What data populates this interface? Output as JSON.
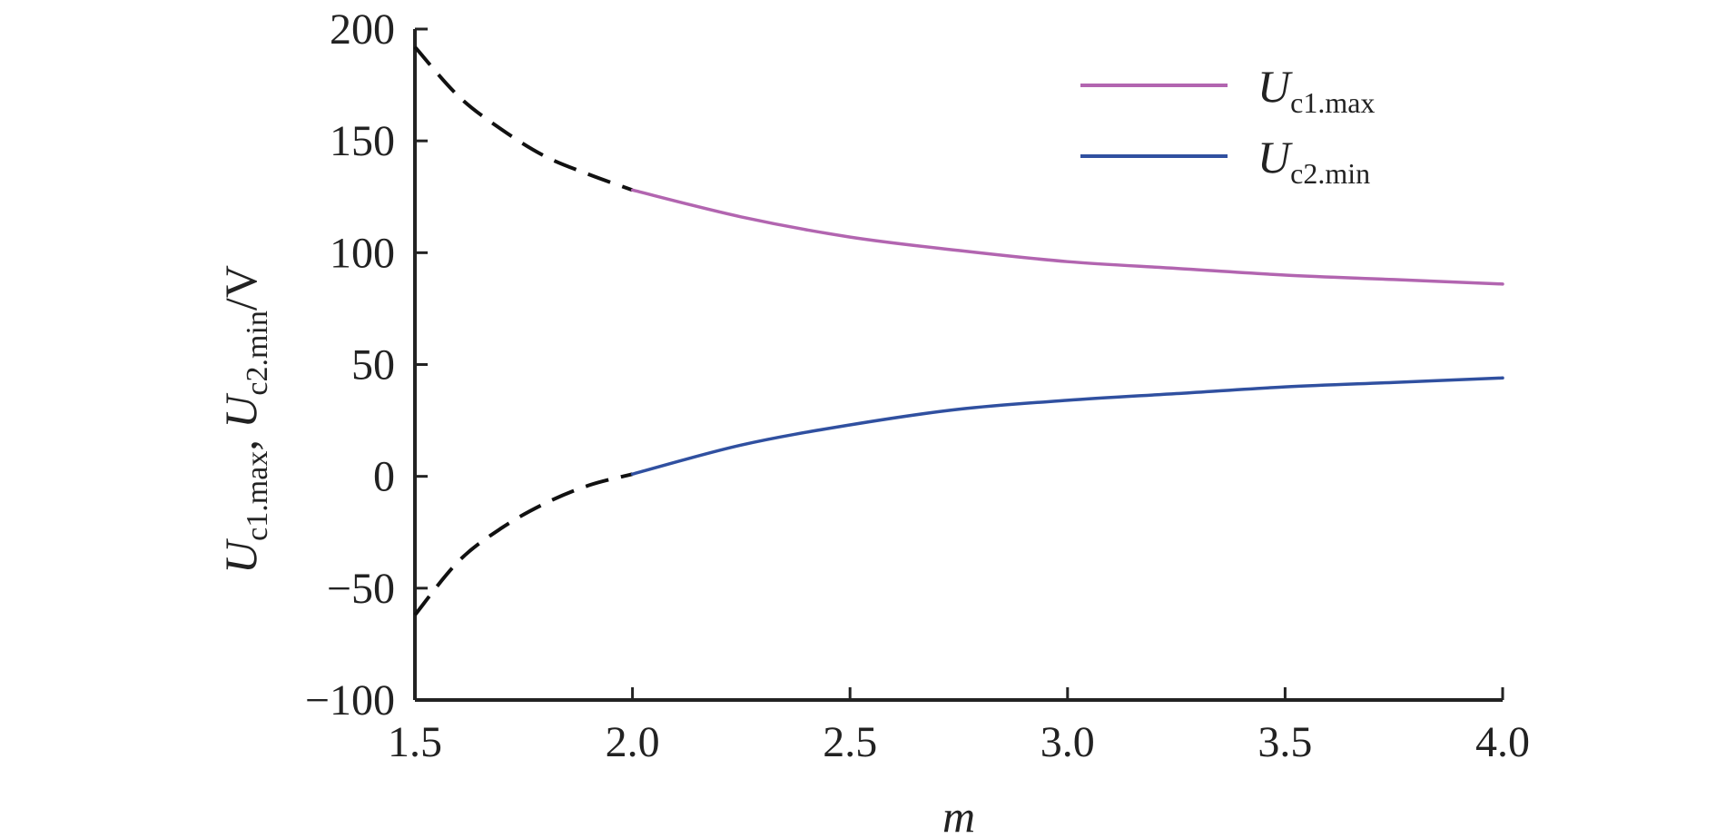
{
  "chart_data": {
    "type": "line",
    "xlabel": "m",
    "ylabel": {
      "base1": "U",
      "sub1": "c1.max",
      "sep": ", ",
      "base2": "U",
      "sub2": "c2.min",
      "unit": "/V"
    },
    "xlim": [
      1.5,
      4.0
    ],
    "ylim": [
      -100,
      200
    ],
    "xticks": [
      "1.5",
      "2.0",
      "2.5",
      "3.0",
      "3.5",
      "4.0"
    ],
    "xtick_values": [
      1.5,
      2.0,
      2.5,
      3.0,
      3.5,
      4.0
    ],
    "yticks": [
      "200",
      "150",
      "100",
      "50",
      "0",
      "−50",
      "−100"
    ],
    "ytick_values": [
      200,
      150,
      100,
      50,
      0,
      -50,
      -100
    ],
    "grid": false,
    "legend_position": "top-right",
    "series": [
      {
        "name_base": "U",
        "name_sub": "c1.max",
        "color": "#b265b0",
        "solid_from_x": 2.0,
        "dashed_color": "#111111",
        "x": [
          1.5,
          1.6,
          1.7,
          1.8,
          1.9,
          2.0,
          2.25,
          2.5,
          2.75,
          3.0,
          3.25,
          3.5,
          3.75,
          4.0
        ],
        "values": [
          192,
          170,
          155,
          143,
          135,
          128,
          116,
          107,
          101,
          96,
          93,
          90,
          88,
          86
        ]
      },
      {
        "name_base": "U",
        "name_sub": "c2.min",
        "color": "#3050a0",
        "solid_from_x": 2.0,
        "dashed_color": "#111111",
        "x": [
          1.5,
          1.6,
          1.7,
          1.8,
          1.9,
          2.0,
          2.25,
          2.5,
          2.75,
          3.0,
          3.25,
          3.5,
          3.75,
          4.0
        ],
        "values": [
          -62,
          -38,
          -23,
          -12,
          -4,
          1,
          14,
          23,
          30,
          34,
          37,
          40,
          42,
          44
        ]
      }
    ]
  }
}
